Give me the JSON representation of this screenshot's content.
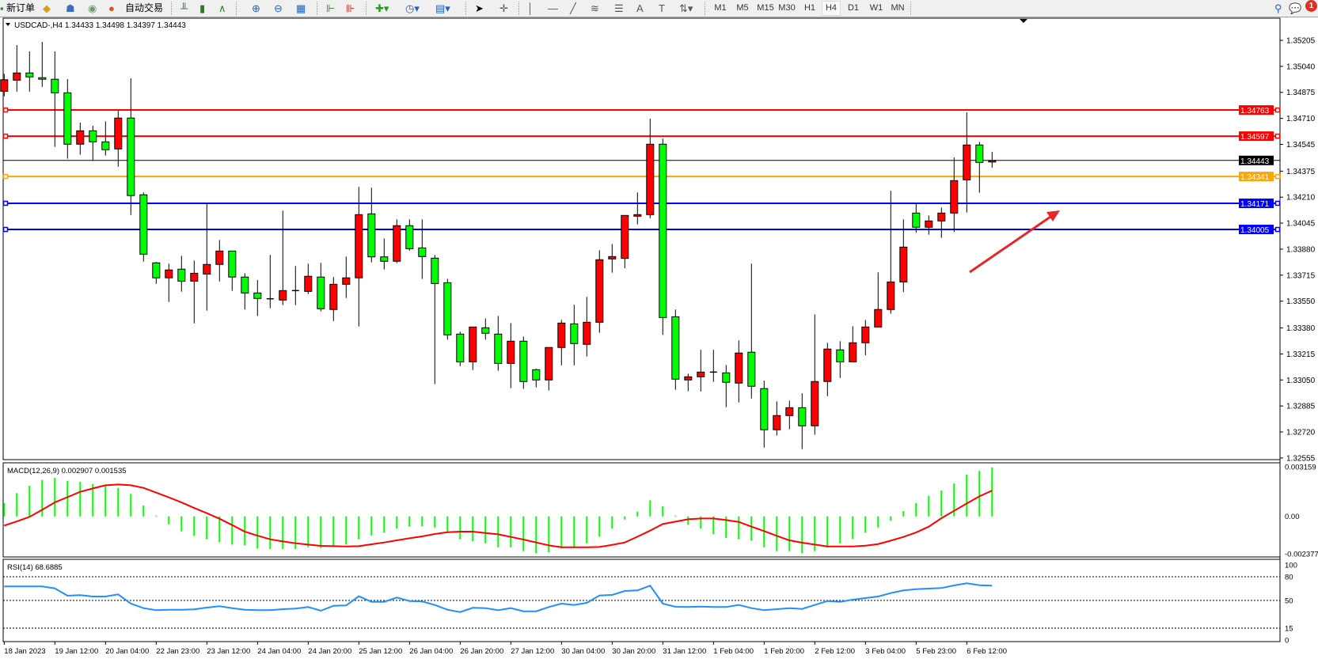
{
  "toolbar": {
    "new_order": "新订单",
    "auto_trading": "自动交易",
    "timeframes": [
      "M1",
      "M5",
      "M15",
      "M30",
      "H1",
      "H4",
      "D1",
      "W1",
      "MN"
    ],
    "active_timeframe": "H4",
    "notification_count": "1",
    "icons": [
      "new-order-icon",
      "market-watch-icon",
      "navigator-icon",
      "signals-icon",
      "auto-trading-icon",
      "bar-chart-icon",
      "candlestick-icon",
      "line-chart-icon",
      "zoom-in-icon",
      "zoom-out-icon",
      "tile-windows-icon",
      "auto-scroll-icon",
      "chart-shift-icon",
      "indicators-icon",
      "periods-icon",
      "templates-icon",
      "cursor-icon",
      "crosshair-icon",
      "vertical-line-icon",
      "horizontal-line-icon",
      "trendline-icon",
      "fibonacci-icon",
      "fibo-fan-icon",
      "text-icon",
      "text-label-icon",
      "arrows-icon",
      "search-icon",
      "chat-icon"
    ]
  },
  "chart_data": [
    {
      "type": "candlestick",
      "title": "USDCAD-,H4  1.34433 1.34498 1.34397 1.34443",
      "symbol": "USDCAD-",
      "timeframe": "H4",
      "up_color": "#ff0000",
      "down_color": "#00ff00",
      "ylim": [
        1.3247,
        1.3539
      ],
      "y_ticks": [
        "1.35205",
        "1.35040",
        "1.34875",
        "1.34710",
        "1.34545",
        "1.34375",
        "1.34210",
        "1.34045",
        "1.33880",
        "1.33715",
        "1.33550",
        "1.33380",
        "1.33215",
        "1.33050",
        "1.32885",
        "1.32720",
        "1.32555"
      ],
      "x_tick_labels": [
        "18 Jan 2023",
        "19 Jan 12:00",
        "20 Jan 04:00",
        "22 Jan 23:00",
        "23 Jan 12:00",
        "24 Jan 04:00",
        "24 Jan 20:00",
        "25 Jan 12:00",
        "26 Jan 04:00",
        "26 Jan 20:00",
        "27 Jan 12:00",
        "30 Jan 04:00",
        "30 Jan 20:00",
        "31 Jan 12:00",
        "1 Feb 04:00",
        "1 Feb 20:00",
        "2 Feb 12:00",
        "3 Feb 04:00",
        "5 Feb 23:00",
        "6 Feb 12:00"
      ],
      "x_tick_every_n_bars": 4,
      "horizontal_lines": [
        {
          "price": "1.34763",
          "color": "#ff0000"
        },
        {
          "price": "1.34597",
          "color": "#ff0000"
        },
        {
          "price": "1.34443",
          "color": "#000000",
          "kind": "current-price"
        },
        {
          "price": "1.34341",
          "color": "#ffa500"
        },
        {
          "price": "1.34171",
          "color": "#0000ff"
        },
        {
          "price": "1.34005",
          "color": "#0000ff"
        }
      ],
      "annotation_arrow_color": "#e8262a",
      "ohlc": [
        [
          1.34882,
          1.34993,
          1.3485,
          1.34955
        ],
        [
          1.34952,
          1.35175,
          1.3488,
          1.34998
        ],
        [
          1.34998,
          1.35135,
          1.3488,
          1.34973
        ],
        [
          1.34968,
          1.35195,
          1.3491,
          1.34958
        ],
        [
          1.34958,
          1.35135,
          1.34529,
          1.34872
        ],
        [
          1.34872,
          1.34959,
          1.34454,
          1.34546
        ],
        [
          1.34546,
          1.34683,
          1.34479,
          1.34631
        ],
        [
          1.34631,
          1.34663,
          1.3444,
          1.34561
        ],
        [
          1.34561,
          1.34691,
          1.34474,
          1.34511
        ],
        [
          1.34516,
          1.34758,
          1.34403,
          1.34712
        ],
        [
          1.34712,
          1.34964,
          1.34097,
          1.3422
        ],
        [
          1.34225,
          1.3424,
          1.33801,
          1.33848
        ],
        [
          1.33793,
          1.33799,
          1.3366,
          1.33698
        ],
        [
          1.33698,
          1.33788,
          1.33545,
          1.33748
        ],
        [
          1.33753,
          1.33838,
          1.3361,
          1.33677
        ],
        [
          1.33677,
          1.33808,
          1.33409,
          1.33727
        ],
        [
          1.33722,
          1.34169,
          1.3349,
          1.33783
        ],
        [
          1.33783,
          1.33938,
          1.33675,
          1.33868
        ],
        [
          1.33868,
          1.33868,
          1.33615,
          1.33703
        ],
        [
          1.33703,
          1.33727,
          1.33497,
          1.33602
        ],
        [
          1.33602,
          1.33684,
          1.33456,
          1.33567
        ],
        [
          1.33565,
          1.33843,
          1.33505,
          1.33565
        ],
        [
          1.33557,
          1.34124,
          1.33525,
          1.33617
        ],
        [
          1.33617,
          1.33773,
          1.33525,
          1.33617
        ],
        [
          1.33612,
          1.33788,
          1.33595,
          1.33708
        ],
        [
          1.33703,
          1.33793,
          1.33485,
          1.33502
        ],
        [
          1.33497,
          1.33703,
          1.33424,
          1.33657
        ],
        [
          1.33657,
          1.33833,
          1.3357,
          1.33698
        ],
        [
          1.33698,
          1.34275,
          1.33389,
          1.34099
        ],
        [
          1.34104,
          1.3427,
          1.33796,
          1.33831
        ],
        [
          1.33831,
          1.33948,
          1.33751,
          1.33803
        ],
        [
          1.33803,
          1.34069,
          1.33791,
          1.34029
        ],
        [
          1.34029,
          1.34069,
          1.33871,
          1.33883
        ],
        [
          1.33888,
          1.34069,
          1.33691,
          1.33833
        ],
        [
          1.33823,
          1.33843,
          1.33023,
          1.33662
        ],
        [
          1.33667,
          1.33692,
          1.33306,
          1.33336
        ],
        [
          1.33341,
          1.33356,
          1.33138,
          1.33165
        ],
        [
          1.33165,
          1.33386,
          1.33113,
          1.33386
        ],
        [
          1.33381,
          1.33441,
          1.33306,
          1.33346
        ],
        [
          1.33341,
          1.33456,
          1.33108,
          1.33155
        ],
        [
          1.33155,
          1.33411,
          1.32998,
          1.33296
        ],
        [
          1.33296,
          1.33325,
          1.32993,
          1.3304
        ],
        [
          1.33115,
          1.33122,
          1.33003,
          1.3305
        ],
        [
          1.3305,
          1.33256,
          1.32983,
          1.33256
        ],
        [
          1.33256,
          1.33431,
          1.33143,
          1.33411
        ],
        [
          1.33406,
          1.33527,
          1.33143,
          1.33281
        ],
        [
          1.33276,
          1.33577,
          1.33199,
          1.33416
        ],
        [
          1.33416,
          1.33873,
          1.33349,
          1.33813
        ],
        [
          1.33818,
          1.33913,
          1.33731,
          1.33833
        ],
        [
          1.33821,
          1.34095,
          1.33759,
          1.34094
        ],
        [
          1.34089,
          1.3424,
          1.34037,
          1.34099
        ],
        [
          1.34099,
          1.34708,
          1.34077,
          1.34546
        ],
        [
          1.34546,
          1.34581,
          1.33336,
          1.33446
        ],
        [
          1.33451,
          1.33497,
          1.32988,
          1.33055
        ],
        [
          1.3305,
          1.3309,
          1.32978,
          1.3307
        ],
        [
          1.3307,
          1.33241,
          1.32977,
          1.331
        ],
        [
          1.331,
          1.33241,
          1.33038,
          1.331
        ],
        [
          1.33095,
          1.33145,
          1.32877,
          1.33035
        ],
        [
          1.3303,
          1.33301,
          1.32907,
          1.33221
        ],
        [
          1.33226,
          1.33788,
          1.32932,
          1.3301
        ],
        [
          1.32995,
          1.33046,
          1.32621,
          1.32734
        ],
        [
          1.32734,
          1.32914,
          1.32697,
          1.32824
        ],
        [
          1.32824,
          1.32919,
          1.32737,
          1.32874
        ],
        [
          1.32874,
          1.32965,
          1.32611,
          1.32759
        ],
        [
          1.32759,
          1.33466,
          1.32702,
          1.3304
        ],
        [
          1.3304,
          1.33286,
          1.32947,
          1.33246
        ],
        [
          1.33241,
          1.33296,
          1.33063,
          1.33165
        ],
        [
          1.33165,
          1.33391,
          1.33165,
          1.33286
        ],
        [
          1.33286,
          1.33431,
          1.33206,
          1.33386
        ],
        [
          1.33386,
          1.33733,
          1.33386,
          1.33497
        ],
        [
          1.33497,
          1.3425,
          1.3347,
          1.33672
        ],
        [
          1.33672,
          1.34069,
          1.33607,
          1.33893
        ],
        [
          1.34109,
          1.34169,
          1.33984,
          1.34019
        ],
        [
          1.34019,
          1.34094,
          1.33972,
          1.34059
        ],
        [
          1.34059,
          1.34144,
          1.33952,
          1.34109
        ],
        [
          1.34109,
          1.34462,
          1.33989,
          1.34315
        ],
        [
          1.3432,
          1.34748,
          1.34112,
          1.34541
        ],
        [
          1.34541,
          1.34561,
          1.34238,
          1.3443
        ],
        [
          1.34433,
          1.34498,
          1.34397,
          1.34443
        ]
      ]
    },
    {
      "type": "bar",
      "title": "MACD(12,26,9) 0.002907 0.001535",
      "ylim": [
        -0.002377,
        0.003159
      ],
      "y_ticks": [
        "0.003159",
        "0.00",
        "-0.002377"
      ],
      "histogram_color": "#00ff00",
      "signal_color": "#ff0000",
      "macd": [
        0.000801,
        0.001382,
        0.001821,
        0.002167,
        0.002292,
        0.00212,
        0.002057,
        0.001931,
        0.001868,
        0.001696,
        0.001335,
        0.000644,
        4.7e-05,
        -0.000471,
        -0.000895,
        -0.001162,
        -0.001366,
        -0.001523,
        -0.00168,
        -0.001711,
        -0.001915,
        -0.001947,
        -0.001947,
        -0.001947,
        -0.001837,
        -0.001884,
        -0.001758,
        -0.00168,
        -0.001366,
        -0.00113,
        -0.000973,
        -0.000738,
        -0.000612,
        -0.000581,
        -0.000659,
        -0.000895,
        -0.001366,
        -0.001492,
        -0.001601,
        -0.001837,
        -0.001837,
        -0.002072,
        -0.002198,
        -0.002151,
        -0.001915,
        -0.001837,
        -0.001601,
        -0.001209,
        -0.000738,
        -0.000188,
        0.000283,
        0.000958,
        0.000597,
        4.7e-05,
        -0.000502,
        -0.000738,
        -0.001052,
        -0.001287,
        -0.001366,
        -0.001444,
        -0.001837,
        -0.002072,
        -0.002072,
        -0.002198,
        -0.002072,
        -0.001837,
        -0.001601,
        -0.001335,
        -0.000973,
        -0.000659,
        -0.000267,
        0.000314,
        0.000801,
        0.001225,
        0.001539,
        0.001963,
        0.002481,
        0.002716,
        0.002907
      ],
      "signal": [
        -0.00055,
        -0.000298,
        -3.1e-05,
        0.000393,
        0.000832,
        0.001146,
        0.00146,
        0.001664,
        0.001853,
        0.0019,
        0.001853,
        0.001696,
        0.001413,
        0.00113,
        0.000832,
        0.000502,
        0.000188,
        -0.000141,
        -0.000518,
        -0.000911,
        -0.001146,
        -0.001366,
        -0.001492,
        -0.001601,
        -0.00168,
        -0.001758,
        -0.001774,
        -0.00179,
        -0.001774,
        -0.001664,
        -0.001554,
        -0.001429,
        -0.001303,
        -0.001193,
        -0.001052,
        -0.000942,
        -0.000911,
        -0.000911,
        -0.000989,
        -0.001068,
        -0.001225,
        -0.001382,
        -0.001554,
        -0.001727,
        -0.001837,
        -0.001837,
        -0.001837,
        -0.001821,
        -0.001696,
        -0.001554,
        -0.001209,
        -0.000848,
        -0.000455,
        -0.000314,
        -0.000173,
        -0.000126,
        -0.000126,
        -0.00022,
        -0.00033,
        -0.000612,
        -0.000879,
        -0.001162,
        -0.001429,
        -0.00157,
        -0.00168,
        -0.00179,
        -0.00179,
        -0.00179,
        -0.001743,
        -0.001649,
        -0.001444,
        -0.001225,
        -0.000958,
        -0.000612,
        -0.00011,
        0.00033,
        0.000769,
        0.001193,
        0.001535
      ]
    },
    {
      "type": "line",
      "title": "RSI(14) 68.6885",
      "ylim": [
        0,
        100
      ],
      "y_ticks": [
        "100",
        "80",
        "50",
        "15",
        "0"
      ],
      "levels": [
        80,
        50,
        15
      ],
      "line_color": "#1e90ff",
      "values": [
        67.7,
        67.7,
        67.7,
        67.7,
        65.3,
        56,
        56.7,
        55,
        55,
        57.7,
        46,
        40.3,
        37.7,
        38.3,
        38.3,
        38.7,
        41,
        42.7,
        40.3,
        38.3,
        37.7,
        37.7,
        39,
        39.7,
        41.7,
        37,
        43.3,
        43.7,
        55.3,
        48.3,
        48.3,
        53.7,
        49.3,
        48.7,
        44.3,
        38.3,
        35.3,
        40.7,
        40.3,
        37.7,
        40.3,
        36.3,
        36.3,
        41.7,
        46,
        44.3,
        47,
        56.3,
        57,
        62,
        62.7,
        68.7,
        46,
        42,
        41.7,
        42.3,
        41.7,
        41.7,
        44.3,
        40.3,
        37.7,
        39,
        40.3,
        39.3,
        44.3,
        49.3,
        48.3,
        51,
        53,
        55,
        59.3,
        62.7,
        64.3,
        65,
        65.7,
        69,
        71.7,
        69.3,
        68.6885
      ]
    }
  ]
}
